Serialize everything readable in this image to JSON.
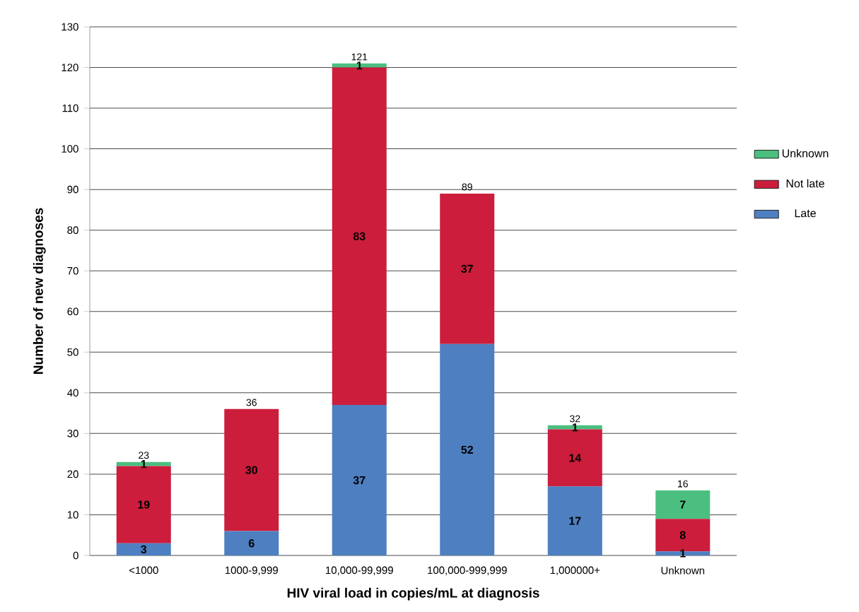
{
  "chart_data": {
    "type": "bar",
    "stacked": true,
    "xlabel": "HIV viral load in copies/mL at diagnosis",
    "ylabel": "Number of new diagnoses",
    "categories": [
      "<1000",
      "1000-9,999",
      "10,000-99,999",
      "100,000-999,999",
      "1,000000+",
      "Unknown"
    ],
    "series": [
      {
        "name": "Late",
        "color": "#4e7fc0",
        "values": [
          3,
          6,
          37,
          52,
          17,
          1
        ]
      },
      {
        "name": "Not late",
        "color": "#cc1d3c",
        "values": [
          19,
          30,
          83,
          37,
          14,
          8
        ]
      },
      {
        "name": "Unknown",
        "color": "#4bbf7f",
        "values": [
          1,
          null,
          1,
          null,
          1,
          7
        ]
      }
    ],
    "totals": [
      "23",
      "36",
      "121",
      "89",
      "32",
      "16"
    ],
    "data_labels": true,
    "ylim": [
      0,
      130
    ],
    "yticks": [
      0,
      10,
      20,
      30,
      40,
      50,
      60,
      70,
      80,
      90,
      100,
      110,
      120,
      130
    ],
    "grid": "y",
    "legend": "right"
  }
}
